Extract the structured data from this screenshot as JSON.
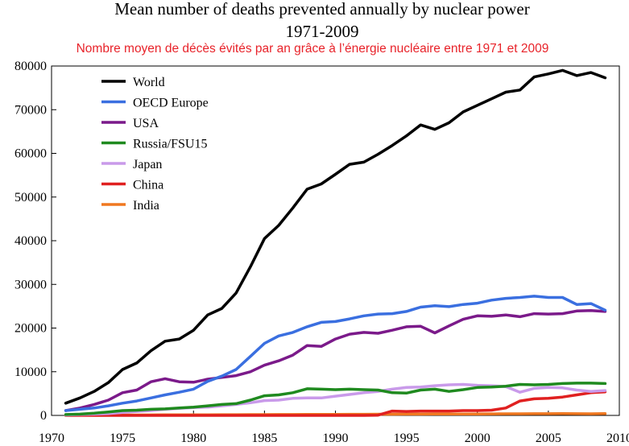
{
  "chart_data": {
    "type": "line",
    "title_line1": "Mean number of deaths prevented annually by nuclear power",
    "title_line2": "1971-2009",
    "subtitle": "Nombre moyen de décès évités par an grâce à l’énergie nucléaire entre 1971 et 2009",
    "xlabel": "",
    "ylabel": "",
    "xlim": [
      1970,
      2010
    ],
    "ylim": [
      0,
      80000
    ],
    "xticks": [
      1970,
      1975,
      1980,
      1985,
      1990,
      1995,
      2000,
      2005,
      2010
    ],
    "yticks": [
      0,
      10000,
      20000,
      30000,
      40000,
      50000,
      60000,
      70000,
      80000
    ],
    "grid": false,
    "legend_position": "top-left",
    "x": [
      1971,
      1972,
      1973,
      1974,
      1975,
      1976,
      1977,
      1978,
      1979,
      1980,
      1981,
      1982,
      1983,
      1984,
      1985,
      1986,
      1987,
      1988,
      1989,
      1990,
      1991,
      1992,
      1993,
      1994,
      1995,
      1996,
      1997,
      1998,
      1999,
      2000,
      2001,
      2002,
      2003,
      2004,
      2005,
      2006,
      2007,
      2008,
      2009
    ],
    "series": [
      {
        "name": "World",
        "color": "#000000",
        "values": [
          2800,
          4000,
          5500,
          7500,
          10500,
          12000,
          14800,
          17000,
          17500,
          19500,
          23000,
          24500,
          28000,
          34000,
          40500,
          43500,
          47500,
          51800,
          53000,
          55200,
          57500,
          58000,
          59800,
          61800,
          64000,
          66500,
          65500,
          67000,
          69500,
          71000,
          72500,
          74000,
          74500,
          77500,
          78200,
          79000,
          77800,
          78500,
          77300
        ]
      },
      {
        "name": "OECD Europe",
        "color": "#3a6fe0",
        "values": [
          1100,
          1400,
          1700,
          2200,
          2800,
          3300,
          4000,
          4700,
          5300,
          6000,
          7800,
          9000,
          10500,
          13500,
          16500,
          18200,
          19000,
          20300,
          21300,
          21500,
          22100,
          22800,
          23200,
          23300,
          23800,
          24800,
          25100,
          24900,
          25400,
          25700,
          26400,
          26800,
          27000,
          27300,
          27000,
          27000,
          25400,
          25600,
          24100
        ]
      },
      {
        "name": "USA",
        "color": "#7b1a8a",
        "values": [
          1100,
          1700,
          2500,
          3500,
          5200,
          5800,
          7700,
          8400,
          7700,
          7600,
          8300,
          8700,
          9100,
          10000,
          11500,
          12500,
          13800,
          16000,
          15800,
          17500,
          18600,
          19000,
          18800,
          19500,
          20300,
          20400,
          18900,
          20500,
          22000,
          22800,
          22700,
          23000,
          22600,
          23300,
          23200,
          23300,
          23900,
          24000,
          23800
        ]
      },
      {
        "name": "Russia/FSU15",
        "color": "#1f8a1f",
        "values": [
          200,
          300,
          500,
          800,
          1100,
          1200,
          1400,
          1500,
          1700,
          1900,
          2200,
          2500,
          2700,
          3500,
          4500,
          4700,
          5200,
          6100,
          6000,
          5900,
          6000,
          5900,
          5800,
          5200,
          5100,
          5800,
          6000,
          5500,
          5900,
          6400,
          6500,
          6700,
          7100,
          7000,
          7100,
          7300,
          7400,
          7400,
          7300
        ]
      },
      {
        "name": "Japan",
        "color": "#c99aea",
        "values": [
          100,
          200,
          300,
          400,
          700,
          900,
          1100,
          1400,
          1600,
          1800,
          1900,
          2200,
          2500,
          2900,
          3400,
          3500,
          3900,
          4000,
          4000,
          4400,
          4800,
          5200,
          5500,
          6000,
          6400,
          6500,
          6800,
          7000,
          7100,
          6900,
          6800,
          6600,
          5300,
          6200,
          6400,
          6300,
          5800,
          5500,
          5700
        ]
      },
      {
        "name": "China",
        "color": "#e02020",
        "values": [
          0,
          0,
          0,
          0,
          0,
          0,
          0,
          0,
          0,
          0,
          0,
          0,
          0,
          0,
          0,
          0,
          0,
          0,
          0,
          0,
          0,
          0,
          50,
          1000,
          900,
          1000,
          1000,
          1000,
          1100,
          1100,
          1200,
          1700,
          3300,
          3800,
          3900,
          4200,
          4700,
          5200,
          5400
        ]
      },
      {
        "name": "India",
        "color": "#f07820",
        "values": [
          50,
          60,
          70,
          80,
          90,
          100,
          110,
          120,
          130,
          140,
          150,
          160,
          170,
          180,
          190,
          200,
          210,
          220,
          230,
          240,
          250,
          260,
          270,
          280,
          290,
          300,
          310,
          320,
          330,
          340,
          350,
          360,
          370,
          380,
          390,
          400,
          380,
          360,
          400
        ]
      }
    ]
  }
}
